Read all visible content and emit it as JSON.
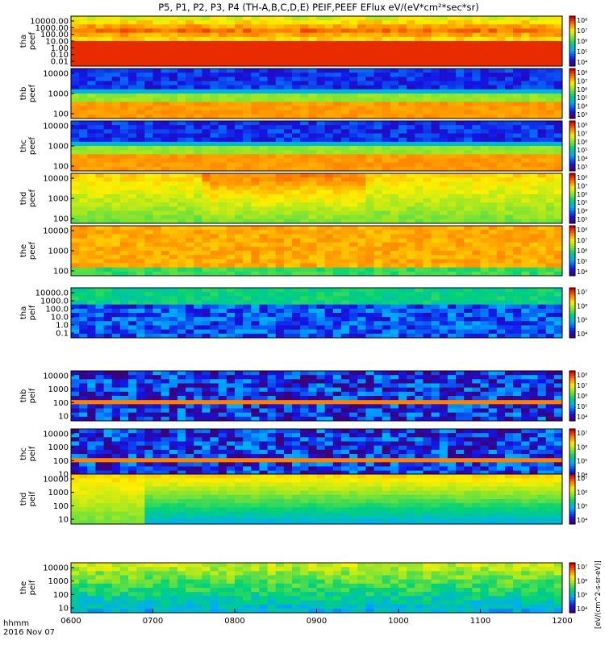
{
  "chart_data": {
    "type": "heatmap",
    "title": "P5, P1, P2, P3, P4 (TH-A,B,C,D,E) PEIF,PEEF EFlux eV/(eV*cm²*sec*sr)",
    "x_axis": {
      "ticks": [
        "0600",
        "0700",
        "0800",
        "0900",
        "1000",
        "1100",
        "1200"
      ],
      "label_line1": "hhmm",
      "label_line2": "2016 Nov 07"
    },
    "colorbar_label": "[eV/(cm^2-s-sr-eV)]",
    "panels": [
      {
        "id": "tha_peef",
        "ylabel": [
          "tha",
          "peef"
        ],
        "yticks": [
          "10000.00",
          "1000.00",
          "100.00",
          "10.00",
          "1.00",
          "0.10",
          "0.01"
        ],
        "cbar_ticks": [
          "10⁸",
          "10⁷",
          "10⁶",
          "10⁵",
          "10⁴"
        ]
      },
      {
        "id": "thb_peef",
        "ylabel": [
          "thb",
          "peef"
        ],
        "yticks": [
          "10000",
          "1000",
          "100"
        ],
        "cbar_ticks": [
          "10⁸",
          "10⁷",
          "10⁶",
          "10⁵",
          "10⁴",
          "10³"
        ]
      },
      {
        "id": "thc_peef",
        "ylabel": [
          "thc",
          "peef"
        ],
        "yticks": [
          "10000",
          "1000",
          "100"
        ],
        "cbar_ticks": [
          "10⁸",
          "10⁷",
          "10⁶",
          "10⁵",
          "10⁴",
          "10³"
        ]
      },
      {
        "id": "thd_peef",
        "ylabel": [
          "thd",
          "peef"
        ],
        "yticks": [
          "10000",
          "1000",
          "100"
        ],
        "cbar_ticks": [
          "10⁸",
          "10⁷",
          "10⁶",
          "10⁵",
          "10⁴",
          "10³"
        ]
      },
      {
        "id": "the_peef",
        "ylabel": [
          "the",
          "peef"
        ],
        "yticks": [
          "10000",
          "1000",
          "100"
        ],
        "cbar_ticks": [
          "10⁸",
          "10⁷",
          "10⁶",
          "10⁵",
          "10⁴"
        ]
      },
      {
        "id": "tha_peif",
        "ylabel": [
          "tha",
          "peif"
        ],
        "yticks": [
          "10000.0",
          "1000.0",
          "100.0",
          "10.0",
          "1.0",
          "0.1"
        ],
        "cbar_ticks": [
          "10⁷",
          "10⁶",
          "10⁵",
          "10⁴"
        ]
      },
      {
        "id": "thb_peif",
        "ylabel": [
          "thb",
          "peif"
        ],
        "yticks": [
          "10000",
          "1000",
          "100",
          "10"
        ],
        "cbar_ticks": [
          "10⁸",
          "10⁷",
          "10⁶",
          "10⁵",
          "10⁴"
        ]
      },
      {
        "id": "thc_peif",
        "ylabel": [
          "thc",
          "peif"
        ],
        "yticks": [
          "10000",
          "1000",
          "100",
          "10"
        ],
        "cbar_ticks": [
          "10⁷",
          "10⁶",
          "10⁵",
          "10⁴"
        ]
      },
      {
        "id": "thd_peif",
        "ylabel": [
          "thd",
          "peif"
        ],
        "yticks": [
          "10000",
          "1000",
          "100",
          "10"
        ],
        "cbar_ticks": [
          "10⁷",
          "10⁶",
          "10⁵",
          "10⁴"
        ]
      },
      {
        "id": "the_peif",
        "ylabel": [
          "the",
          "peif"
        ],
        "yticks": [
          "10000",
          "1000",
          "100",
          "10"
        ],
        "cbar_ticks": [
          "10⁷",
          "10⁶",
          "10⁵",
          "10⁴"
        ]
      }
    ]
  }
}
